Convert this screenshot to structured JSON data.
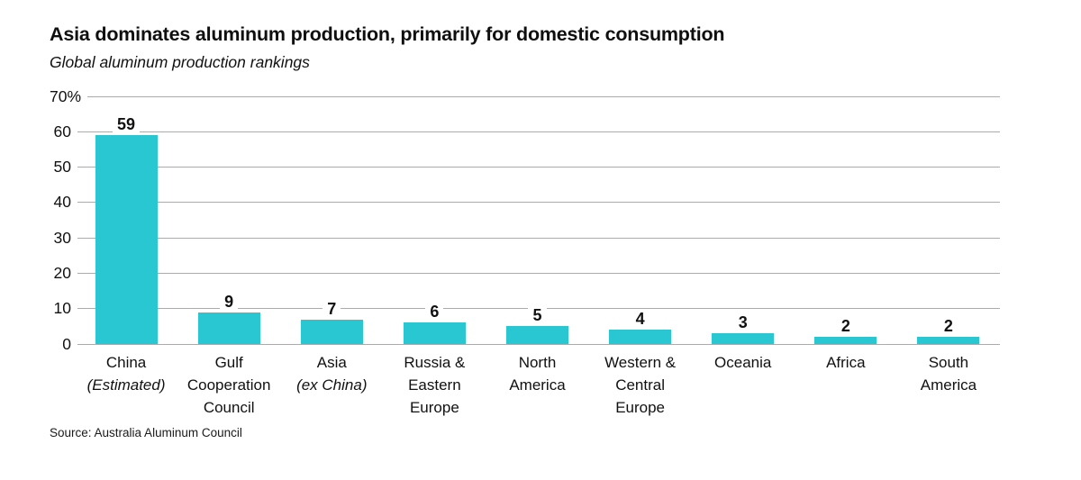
{
  "header": {
    "title": "Asia dominates aluminum production, primarily for domestic consumption",
    "subtitle": "Global aluminum production rankings"
  },
  "source": "Source: Australia Aluminum Council",
  "colors": {
    "bar": "#28C7D1",
    "gridline": "#ababab",
    "text": "#111111",
    "background": "#ffffff"
  },
  "chart_data": {
    "type": "bar",
    "title": "Asia dominates aluminum production, primarily for domestic consumption",
    "subtitle": "Global aluminum production rankings",
    "categories": [
      "China (Estimated)",
      "Gulf Cooperation Council",
      "Asia (ex China)",
      "Russia & Eastern Europe",
      "North America",
      "Western & Central Europe",
      "Oceania",
      "Africa",
      "South America"
    ],
    "category_display": [
      {
        "lines": [
          {
            "text": "China",
            "italic": false
          },
          {
            "text": "(Estimated)",
            "italic": true
          }
        ]
      },
      {
        "lines": [
          {
            "text": "Gulf",
            "italic": false
          },
          {
            "text": "Cooperation",
            "italic": false
          },
          {
            "text": "Council",
            "italic": false
          }
        ]
      },
      {
        "lines": [
          {
            "text": "Asia",
            "italic": false
          },
          {
            "text": "(ex China)",
            "italic": true
          }
        ]
      },
      {
        "lines": [
          {
            "text": "Russia &",
            "italic": false
          },
          {
            "text": "Eastern",
            "italic": false
          },
          {
            "text": "Europe",
            "italic": false
          }
        ]
      },
      {
        "lines": [
          {
            "text": "North",
            "italic": false
          },
          {
            "text": "America",
            "italic": false
          }
        ]
      },
      {
        "lines": [
          {
            "text": "Western &",
            "italic": false
          },
          {
            "text": "Central",
            "italic": false
          },
          {
            "text": "Europe",
            "italic": false
          }
        ]
      },
      {
        "lines": [
          {
            "text": "Oceania",
            "italic": false
          }
        ]
      },
      {
        "lines": [
          {
            "text": "Africa",
            "italic": false
          }
        ]
      },
      {
        "lines": [
          {
            "text": "South",
            "italic": false
          },
          {
            "text": "America",
            "italic": false
          }
        ]
      }
    ],
    "values": [
      59,
      9,
      7,
      6,
      5,
      4,
      3,
      2,
      2
    ],
    "value_labels": [
      59,
      9,
      7,
      6,
      5,
      4,
      3,
      2,
      2
    ],
    "xlabel": "",
    "ylabel": "",
    "ylim": [
      0,
      70
    ],
    "yticks": [
      {
        "value": 0,
        "label": "0"
      },
      {
        "value": 10,
        "label": "10"
      },
      {
        "value": 20,
        "label": "20"
      },
      {
        "value": 30,
        "label": "30"
      },
      {
        "value": 40,
        "label": "40"
      },
      {
        "value": 50,
        "label": "50"
      },
      {
        "value": 60,
        "label": "60"
      },
      {
        "value": 70,
        "label": "70%"
      }
    ],
    "grid": true,
    "legend": false,
    "bar_color": "#28C7D1"
  }
}
